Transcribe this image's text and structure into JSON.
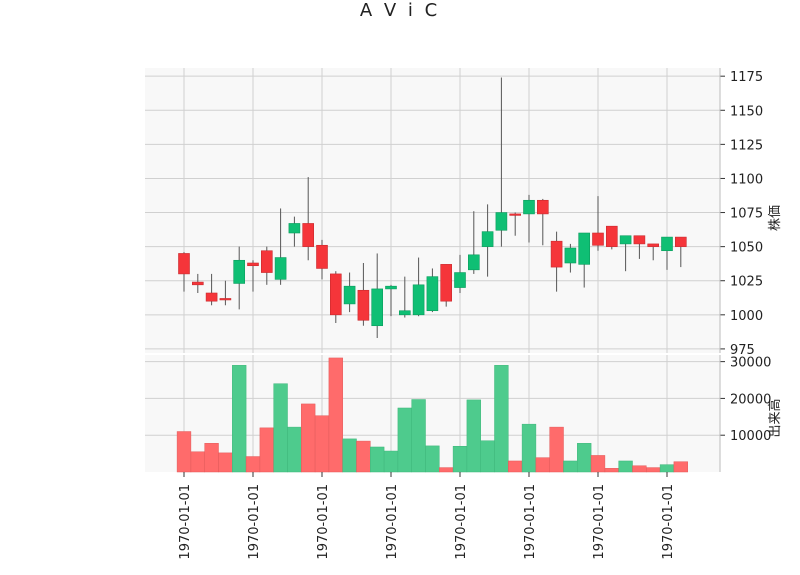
{
  "chart_data": {
    "type": "candlestick",
    "title": "A V i C",
    "price_ylabel": "株価",
    "volume_ylabel": "出来高",
    "x_tick_labels": [
      "1970-01-01",
      "1970-01-01",
      "1970-01-01",
      "1970-01-01",
      "1970-01-01",
      "1970-01-01",
      "1970-01-01",
      "1970-01-01"
    ],
    "x_tick_indices": [
      0,
      5,
      10,
      15,
      20,
      25,
      30,
      35
    ],
    "price_ylim": [
      972,
      1181
    ],
    "price_yticks": [
      975,
      1000,
      1025,
      1050,
      1075,
      1100,
      1125,
      1150,
      1175
    ],
    "volume_ylim": [
      0,
      31800
    ],
    "volume_yticks": [
      10000,
      20000,
      30000
    ],
    "grid": true,
    "colors": {
      "up": "#0fbf74",
      "down": "#f5353a",
      "volume_up": "#4ecb8d",
      "volume_down": "#ff6b6b",
      "panel_bg": "#f8f8f8",
      "grid": "#d0d0d0",
      "wick": "#555555"
    },
    "ohlc": [
      {
        "open": 1045,
        "high": 1046,
        "low": 1017,
        "close": 1030,
        "volume": 11000
      },
      {
        "open": 1024,
        "high": 1030,
        "low": 1016,
        "close": 1022,
        "volume": 5500
      },
      {
        "open": 1016,
        "high": 1030,
        "low": 1007,
        "close": 1010,
        "volume": 7800
      },
      {
        "open": 1012,
        "high": 1025,
        "low": 1007,
        "close": 1011,
        "volume": 5200
      },
      {
        "open": 1023,
        "high": 1050,
        "low": 1004,
        "close": 1040,
        "volume": 29000
      },
      {
        "open": 1038,
        "high": 1040,
        "low": 1017,
        "close": 1036,
        "volume": 4200
      },
      {
        "open": 1047,
        "high": 1050,
        "low": 1022,
        "close": 1031,
        "volume": 12000
      },
      {
        "open": 1026,
        "high": 1078,
        "low": 1022,
        "close": 1042,
        "volume": 24000
      },
      {
        "open": 1060,
        "high": 1072,
        "low": 1050,
        "close": 1067,
        "volume": 12200
      },
      {
        "open": 1067,
        "high": 1101,
        "low": 1040,
        "close": 1050,
        "volume": 18500
      },
      {
        "open": 1051,
        "high": 1055,
        "low": 1026,
        "close": 1034,
        "volume": 15300
      },
      {
        "open": 1030,
        "high": 1032,
        "low": 994,
        "close": 1000,
        "volume": 31000
      },
      {
        "open": 1008,
        "high": 1031,
        "low": 1002,
        "close": 1021,
        "volume": 9000
      },
      {
        "open": 1018,
        "high": 1038,
        "low": 992,
        "close": 996,
        "volume": 8400
      },
      {
        "open": 992,
        "high": 1045,
        "low": 983,
        "close": 1019,
        "volume": 6800
      },
      {
        "open": 1019,
        "high": 1022,
        "low": 999,
        "close": 1021,
        "volume": 5700
      },
      {
        "open": 1000,
        "high": 1028,
        "low": 998,
        "close": 1003,
        "volume": 17400
      },
      {
        "open": 1000,
        "high": 1042,
        "low": 999,
        "close": 1022,
        "volume": 19700
      },
      {
        "open": 1003,
        "high": 1034,
        "low": 1002,
        "close": 1028,
        "volume": 7100
      },
      {
        "open": 1037,
        "high": 1037,
        "low": 1006,
        "close": 1010,
        "volume": 1200
      },
      {
        "open": 1020,
        "high": 1044,
        "low": 1016,
        "close": 1031,
        "volume": 7000
      },
      {
        "open": 1033,
        "high": 1076,
        "low": 1030,
        "close": 1044,
        "volume": 19600
      },
      {
        "open": 1050,
        "high": 1081,
        "low": 1028,
        "close": 1061,
        "volume": 8500
      },
      {
        "open": 1062,
        "high": 1174,
        "low": 1050,
        "close": 1075,
        "volume": 29000
      },
      {
        "open": 1074,
        "high": 1075,
        "low": 1058,
        "close": 1073,
        "volume": 3000
      },
      {
        "open": 1074,
        "high": 1088,
        "low": 1053,
        "close": 1084,
        "volume": 13000
      },
      {
        "open": 1084,
        "high": 1085,
        "low": 1051,
        "close": 1074,
        "volume": 3900
      },
      {
        "open": 1054,
        "high": 1061,
        "low": 1017,
        "close": 1035,
        "volume": 12200
      },
      {
        "open": 1038,
        "high": 1052,
        "low": 1031,
        "close": 1049,
        "volume": 3000
      },
      {
        "open": 1037,
        "high": 1059,
        "low": 1020,
        "close": 1060,
        "volume": 7800
      },
      {
        "open": 1060,
        "high": 1087,
        "low": 1047,
        "close": 1051,
        "volume": 4500
      },
      {
        "open": 1065,
        "high": 1065,
        "low": 1048,
        "close": 1050,
        "volume": 1000
      },
      {
        "open": 1052,
        "high": 1058,
        "low": 1032,
        "close": 1058,
        "volume": 3000
      },
      {
        "open": 1058,
        "high": 1058,
        "low": 1041,
        "close": 1052,
        "volume": 1700
      },
      {
        "open": 1052,
        "high": 1052,
        "low": 1040,
        "close": 1050,
        "volume": 1200
      },
      {
        "open": 1047,
        "high": 1057,
        "low": 1033,
        "close": 1057,
        "volume": 2000
      },
      {
        "open": 1057,
        "high": 1057,
        "low": 1035,
        "close": 1050,
        "volume": 2800
      }
    ]
  }
}
